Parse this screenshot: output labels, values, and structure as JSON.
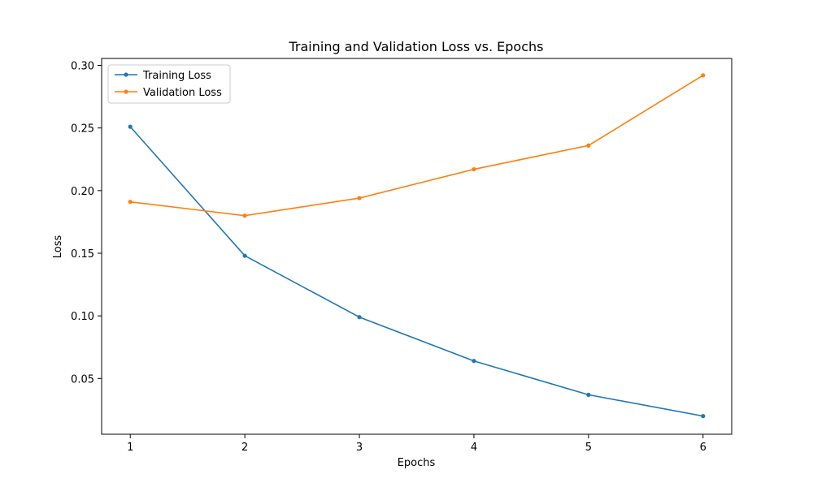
{
  "chart_data": {
    "type": "line",
    "title": "Training and Validation Loss vs. Epochs",
    "xlabel": "Epochs",
    "ylabel": "Loss",
    "x": [
      1,
      2,
      3,
      4,
      5,
      6
    ],
    "xticks": [
      "1",
      "2",
      "3",
      "4",
      "5",
      "6"
    ],
    "yticks": [
      "0.05",
      "0.10",
      "0.15",
      "0.20",
      "0.25",
      "0.30"
    ],
    "ytick_values": [
      0.05,
      0.1,
      0.15,
      0.2,
      0.25,
      0.3
    ],
    "xlim": [
      0.75,
      6.25
    ],
    "ylim": [
      0.0055,
      0.3055
    ],
    "grid": false,
    "legend_position": "top-left",
    "series": [
      {
        "name": "Training Loss",
        "color": "#1f77b4",
        "marker": "circle",
        "values": [
          0.251,
          0.148,
          0.099,
          0.064,
          0.037,
          0.02
        ]
      },
      {
        "name": "Validation Loss",
        "color": "#ff7f0e",
        "marker": "circle",
        "values": [
          0.191,
          0.18,
          0.194,
          0.217,
          0.236,
          0.292
        ]
      }
    ]
  }
}
